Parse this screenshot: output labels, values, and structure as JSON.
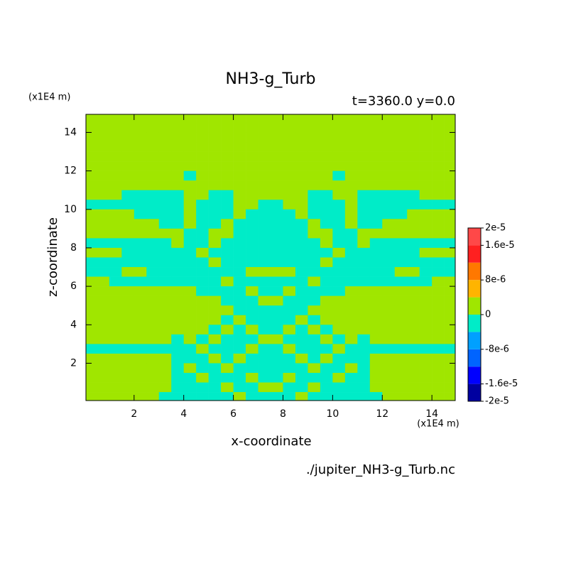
{
  "chart_data": {
    "type": "contour",
    "title": "NH3-g_Turb",
    "subtitle": "t=3360.0 y=0.0",
    "xlabel": "x-coordinate",
    "ylabel": "z-coordinate",
    "x_unit": "(x1E4 m)",
    "y_unit": "(x1E4 m)",
    "source": "./jupiter_NH3-g_Turb.nc",
    "xlim": [
      0.06,
      14.94
    ],
    "ylim": [
      0.06,
      14.94
    ],
    "xticks": [
      2,
      4,
      6,
      8,
      10,
      12,
      14
    ],
    "yticks": [
      2,
      4,
      6,
      8,
      10,
      12,
      14
    ],
    "levels": [
      -2e-05,
      -1.6e-05,
      -1.2e-05,
      -8e-06,
      -4e-06,
      0,
      4e-06,
      8e-06,
      1.2e-05,
      1.6e-05,
      2e-05
    ],
    "colors": [
      "#0000a0",
      "#0000ff",
      "#0064ff",
      "#00a0ff",
      "#00ecc8",
      "#a0e600",
      "#ffb400",
      "#ff7800",
      "#ff2020",
      "#ff4848"
    ],
    "colorbar_ticks": [
      {
        "value": 2e-05,
        "label": "2e-5"
      },
      {
        "value": 1.6e-05,
        "label": "1.6e-5"
      },
      {
        "value": 8e-06,
        "label": "8e-6"
      },
      0,
      {
        "value": -8e-06,
        "label": "-8e-6"
      },
      {
        "value": -1.6e-05,
        "label": "-1.6e-5"
      },
      {
        "value": -2e-05,
        "label": "-2e-5"
      }
    ],
    "x": [
      0.25,
      0.75,
      1.25,
      1.75,
      2.25,
      2.75,
      3.25,
      3.75,
      4.25,
      4.75,
      5.25,
      5.75,
      6.25,
      6.75,
      7.25,
      7.75,
      8.25,
      8.75,
      9.25,
      9.75,
      10.25,
      10.75,
      11.25,
      11.75,
      12.25,
      12.75,
      13.25,
      13.75,
      14.25,
      14.75
    ],
    "z": [
      14.75,
      14.25,
      13.75,
      13.25,
      12.75,
      12.25,
      11.75,
      11.25,
      10.75,
      10.25,
      9.75,
      9.25,
      8.75,
      8.25,
      7.75,
      7.25,
      6.75,
      6.25,
      5.75,
      5.25,
      4.75,
      4.25,
      3.75,
      3.25,
      2.75,
      2.25,
      1.75,
      1.25,
      0.75,
      0.25
    ],
    "values": [
      [
        0,
        0,
        0,
        0,
        0,
        0,
        0,
        0,
        0,
        0,
        0,
        0,
        0,
        0,
        0,
        0,
        0,
        0,
        0,
        0,
        0,
        0,
        0,
        0,
        0,
        0,
        0,
        0,
        0,
        0
      ],
      [
        0,
        0,
        0,
        0,
        0,
        0,
        0,
        0,
        0,
        0,
        0,
        0,
        0,
        0,
        0,
        0,
        0,
        0,
        0,
        0,
        0,
        0,
        0,
        0,
        0,
        0,
        0,
        0,
        0,
        0
      ],
      [
        0,
        0,
        0,
        0,
        0,
        0,
        0,
        0,
        0,
        0,
        0,
        0,
        0,
        0,
        0,
        0,
        0,
        0,
        0,
        0,
        0,
        0,
        0,
        0,
        0,
        0,
        0,
        0,
        0,
        0
      ],
      [
        0,
        0,
        0,
        0,
        0,
        0,
        0,
        0,
        0,
        0,
        0,
        0,
        0,
        0,
        0,
        0,
        0,
        0,
        0,
        0,
        0,
        0,
        0,
        0,
        0,
        0,
        0,
        0,
        0,
        0
      ],
      [
        0,
        0,
        0,
        0,
        0,
        0,
        0,
        0,
        0,
        0,
        0,
        0,
        0,
        0,
        0,
        0,
        0,
        0,
        0,
        0,
        0,
        0,
        0,
        0,
        0,
        0,
        0,
        0,
        0,
        0
      ],
      [
        0,
        0,
        0,
        0,
        0,
        0,
        0,
        0,
        0,
        0,
        0,
        0,
        0,
        0,
        0,
        0,
        0,
        0,
        0,
        0,
        0,
        0,
        0,
        0,
        0,
        0,
        0,
        0,
        0,
        0
      ],
      [
        0,
        0,
        0,
        0,
        0,
        0,
        0,
        0,
        -2e-06,
        0,
        0,
        0,
        0,
        0,
        0,
        0,
        0,
        0,
        0,
        0,
        -2e-06,
        0,
        0,
        0,
        0,
        0,
        0,
        0,
        0,
        0
      ],
      [
        0,
        0,
        0,
        0,
        0,
        0,
        0,
        0,
        0,
        0,
        0,
        0,
        0,
        0,
        0,
        0,
        0,
        0,
        0,
        0,
        0,
        0,
        0,
        0,
        0,
        0,
        0,
        0,
        0,
        0
      ],
      [
        0,
        0,
        0,
        -2e-06,
        -2e-06,
        -2e-06,
        -2e-06,
        -2e-06,
        0,
        0,
        -2e-06,
        -2e-06,
        0,
        0,
        0,
        0,
        0,
        0,
        -2e-06,
        -2e-06,
        0,
        0,
        -2e-06,
        -2e-06,
        -2e-06,
        -2e-06,
        -2e-06,
        0,
        0,
        0
      ],
      [
        -2e-06,
        -2e-06,
        -2e-06,
        -2e-06,
        -2e-06,
        -2e-06,
        -2e-06,
        -2e-06,
        0,
        -2e-06,
        -2e-06,
        -2e-06,
        0,
        0,
        -2e-06,
        -2e-06,
        0,
        0,
        -2e-06,
        -2e-06,
        -2e-06,
        0,
        -2e-06,
        -2e-06,
        -2e-06,
        -2e-06,
        -2e-06,
        -2e-06,
        -2e-06,
        -2e-06
      ],
      [
        0,
        0,
        0,
        0,
        -2e-06,
        -2e-06,
        -2e-06,
        -2e-06,
        0,
        -2e-06,
        -2e-06,
        -2e-06,
        0,
        -2e-06,
        -2e-06,
        -2e-06,
        -2e-06,
        0,
        -2e-06,
        -2e-06,
        -2e-06,
        0,
        -2e-06,
        -2e-06,
        -2e-06,
        -2e-06,
        0,
        0,
        0,
        0
      ],
      [
        0,
        0,
        0,
        0,
        0,
        0,
        -2e-06,
        -2e-06,
        0,
        -2e-06,
        -2e-06,
        0,
        -2e-06,
        -2e-06,
        -2e-06,
        -2e-06,
        -2e-06,
        -2e-06,
        0,
        -2e-06,
        -2e-06,
        0,
        -2e-06,
        -2e-06,
        0,
        0,
        0,
        0,
        0,
        0
      ],
      [
        0,
        0,
        0,
        0,
        0,
        0,
        0,
        0,
        -2e-06,
        -2e-06,
        0,
        0,
        -2e-06,
        -2e-06,
        -2e-06,
        -2e-06,
        -2e-06,
        -2e-06,
        0,
        0,
        -2e-06,
        -2e-06,
        0,
        0,
        0,
        0,
        0,
        0,
        0,
        0
      ],
      [
        -2e-06,
        -2e-06,
        -2e-06,
        -2e-06,
        -2e-06,
        -2e-06,
        -2e-06,
        0,
        -2e-06,
        -2e-06,
        0,
        -2e-06,
        -2e-06,
        -2e-06,
        -2e-06,
        -2e-06,
        -2e-06,
        -2e-06,
        -2e-06,
        0,
        -2e-06,
        -2e-06,
        0,
        -2e-06,
        -2e-06,
        -2e-06,
        -2e-06,
        -2e-06,
        -2e-06,
        -2e-06
      ],
      [
        0,
        0,
        0,
        -2e-06,
        -2e-06,
        -2e-06,
        -2e-06,
        -2e-06,
        -2e-06,
        0,
        -2e-06,
        -2e-06,
        -2e-06,
        -2e-06,
        -2e-06,
        -2e-06,
        -2e-06,
        -2e-06,
        -2e-06,
        -2e-06,
        0,
        -2e-06,
        -2e-06,
        -2e-06,
        -2e-06,
        -2e-06,
        -2e-06,
        0,
        0,
        0
      ],
      [
        -2e-06,
        -2e-06,
        -2e-06,
        -2e-06,
        -2e-06,
        -2e-06,
        -2e-06,
        -2e-06,
        -2e-06,
        -2e-06,
        0,
        -2e-06,
        -2e-06,
        -2e-06,
        -2e-06,
        -2e-06,
        -2e-06,
        -2e-06,
        -2e-06,
        0,
        -2e-06,
        -2e-06,
        -2e-06,
        -2e-06,
        -2e-06,
        -2e-06,
        -2e-06,
        -2e-06,
        -2e-06,
        -2e-06
      ],
      [
        -2e-06,
        -2e-06,
        -2e-06,
        0,
        0,
        -2e-06,
        -2e-06,
        -2e-06,
        -2e-06,
        -2e-06,
        -2e-06,
        -2e-06,
        -2e-06,
        0,
        0,
        0,
        0,
        -2e-06,
        -2e-06,
        -2e-06,
        -2e-06,
        -2e-06,
        -2e-06,
        -2e-06,
        -2e-06,
        0,
        0,
        -2e-06,
        -2e-06,
        -2e-06
      ],
      [
        0,
        0,
        -2e-06,
        -2e-06,
        -2e-06,
        -2e-06,
        -2e-06,
        -2e-06,
        -2e-06,
        -2e-06,
        -2e-06,
        0,
        -2e-06,
        -2e-06,
        -2e-06,
        -2e-06,
        -2e-06,
        -2e-06,
        0,
        -2e-06,
        -2e-06,
        -2e-06,
        -2e-06,
        -2e-06,
        -2e-06,
        -2e-06,
        -2e-06,
        -2e-06,
        0,
        0
      ],
      [
        0,
        0,
        0,
        0,
        0,
        0,
        0,
        0,
        0,
        -2e-06,
        -2e-06,
        -2e-06,
        -2e-06,
        0,
        -2e-06,
        -2e-06,
        0,
        -2e-06,
        -2e-06,
        -2e-06,
        -2e-06,
        0,
        0,
        0,
        0,
        0,
        0,
        0,
        0,
        0
      ],
      [
        0,
        0,
        0,
        0,
        0,
        0,
        0,
        0,
        0,
        0,
        0,
        -2e-06,
        -2e-06,
        -2e-06,
        0,
        0,
        -2e-06,
        -2e-06,
        -2e-06,
        0,
        0,
        0,
        0,
        0,
        0,
        0,
        0,
        0,
        0,
        0
      ],
      [
        0,
        0,
        0,
        0,
        0,
        0,
        0,
        0,
        0,
        0,
        0,
        0,
        -2e-06,
        -2e-06,
        -2e-06,
        -2e-06,
        -2e-06,
        -2e-06,
        0,
        0,
        0,
        0,
        0,
        0,
        0,
        0,
        0,
        0,
        0,
        0
      ],
      [
        0,
        0,
        0,
        0,
        0,
        0,
        0,
        0,
        0,
        0,
        0,
        -2e-06,
        0,
        -2e-06,
        -2e-06,
        -2e-06,
        -2e-06,
        0,
        -2e-06,
        0,
        0,
        0,
        0,
        0,
        0,
        0,
        0,
        0,
        0,
        0
      ],
      [
        0,
        0,
        0,
        0,
        0,
        0,
        0,
        0,
        0,
        0,
        -2e-06,
        0,
        -2e-06,
        0,
        -2e-06,
        -2e-06,
        0,
        -2e-06,
        0,
        -2e-06,
        0,
        0,
        0,
        0,
        0,
        0,
        0,
        0,
        0,
        0
      ],
      [
        0,
        0,
        0,
        0,
        0,
        0,
        0,
        -2e-06,
        0,
        -2e-06,
        0,
        -2e-06,
        -2e-06,
        -2e-06,
        0,
        0,
        -2e-06,
        -2e-06,
        -2e-06,
        0,
        -2e-06,
        0,
        -2e-06,
        0,
        0,
        0,
        0,
        0,
        0,
        0
      ],
      [
        -2e-06,
        -2e-06,
        -2e-06,
        -2e-06,
        -2e-06,
        -2e-06,
        -2e-06,
        -2e-06,
        -2e-06,
        0,
        -2e-06,
        -2e-06,
        -2e-06,
        0,
        -2e-06,
        -2e-06,
        0,
        -2e-06,
        -2e-06,
        -2e-06,
        0,
        -2e-06,
        -2e-06,
        -2e-06,
        -2e-06,
        -2e-06,
        -2e-06,
        -2e-06,
        -2e-06,
        -2e-06
      ],
      [
        0,
        0,
        0,
        0,
        0,
        0,
        0,
        -2e-06,
        -2e-06,
        -2e-06,
        0,
        -2e-06,
        0,
        -2e-06,
        -2e-06,
        -2e-06,
        -2e-06,
        0,
        -2e-06,
        0,
        -2e-06,
        -2e-06,
        -2e-06,
        0,
        0,
        0,
        0,
        0,
        0,
        0
      ],
      [
        0,
        0,
        0,
        0,
        0,
        0,
        0,
        -2e-06,
        0,
        -2e-06,
        -2e-06,
        0,
        -2e-06,
        -2e-06,
        -2e-06,
        -2e-06,
        -2e-06,
        -2e-06,
        0,
        -2e-06,
        -2e-06,
        0,
        -2e-06,
        0,
        0,
        0,
        0,
        0,
        0,
        0
      ],
      [
        0,
        0,
        0,
        0,
        0,
        0,
        0,
        -2e-06,
        -2e-06,
        0,
        -2e-06,
        -2e-06,
        -2e-06,
        0,
        -2e-06,
        -2e-06,
        0,
        -2e-06,
        -2e-06,
        -2e-06,
        0,
        -2e-06,
        -2e-06,
        0,
        0,
        0,
        0,
        0,
        0,
        0
      ],
      [
        0,
        0,
        0,
        0,
        0,
        0,
        0,
        -2e-06,
        -2e-06,
        -2e-06,
        -2e-06,
        0,
        -2e-06,
        -2e-06,
        0,
        0,
        -2e-06,
        -2e-06,
        0,
        -2e-06,
        -2e-06,
        -2e-06,
        -2e-06,
        0,
        0,
        0,
        0,
        0,
        0,
        0
      ],
      [
        0,
        0,
        0,
        0,
        0,
        0,
        -2e-06,
        -2e-06,
        -2e-06,
        -2e-06,
        -2e-06,
        -2e-06,
        0,
        -2e-06,
        -2e-06,
        -2e-06,
        -2e-06,
        0,
        -2e-06,
        -2e-06,
        -2e-06,
        -2e-06,
        -2e-06,
        -2e-06,
        0,
        0,
        0,
        0,
        0,
        0
      ]
    ]
  }
}
